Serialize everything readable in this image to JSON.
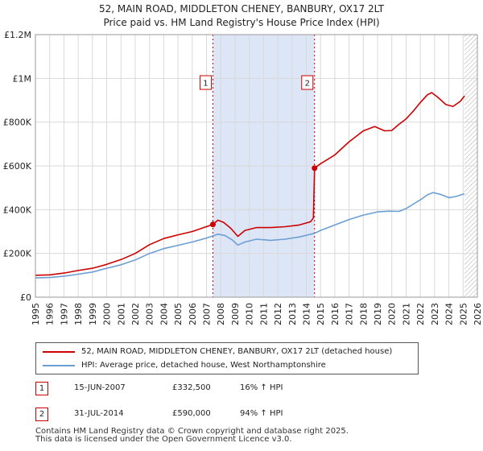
{
  "title_line1": "52, MAIN ROAD, MIDDLETON CHENEY, BANBURY, OX17 2LT",
  "title_line2": "Price paid vs. HM Land Registry's House Price Index (HPI)",
  "colors": {
    "property": "#cc0000",
    "hpi": "#6b9fd4",
    "shade": "#dde6f7",
    "grid": "#d9d9d9",
    "hatch": "#aaaaaa"
  },
  "legend": {
    "property_label": "52, MAIN ROAD, MIDDLETON CHENEY, BANBURY, OX17 2LT (detached house)",
    "hpi_label": "HPI: Average price, detached house, West Northamptonshire"
  },
  "sales": [
    {
      "num": "1",
      "date": "15-JUN-2007",
      "price": "£332,500",
      "hpi_change": "16% ↑ HPI"
    },
    {
      "num": "2",
      "date": "31-JUL-2014",
      "price": "£590,000",
      "hpi_change": "94% ↑ HPI"
    }
  ],
  "footer_line1": "Contains HM Land Registry data © Crown copyright and database right 2025.",
  "footer_line2": "This data is licensed under the Open Government Licence v3.0.",
  "chart_data": {
    "type": "line",
    "xlim": [
      1995,
      2026
    ],
    "ylim": [
      0,
      1200000
    ],
    "x_ticks": [
      1995,
      1996,
      1997,
      1998,
      1999,
      2000,
      2001,
      2002,
      2003,
      2004,
      2005,
      2006,
      2007,
      2008,
      2009,
      2010,
      2011,
      2012,
      2013,
      2014,
      2015,
      2016,
      2017,
      2018,
      2019,
      2020,
      2021,
      2022,
      2023,
      2024,
      2025,
      2026
    ],
    "y_ticks": [
      {
        "value": 0,
        "label": "£0"
      },
      {
        "value": 200000,
        "label": "£200K"
      },
      {
        "value": 400000,
        "label": "£400K"
      },
      {
        "value": 600000,
        "label": "£600K"
      },
      {
        "value": 800000,
        "label": "£800K"
      },
      {
        "value": 1000000,
        "label": "£1M"
      },
      {
        "value": 1200000,
        "label": "£1.2M"
      }
    ],
    "shaded_range": [
      2007.45,
      2014.58
    ],
    "forecast_start": 2025.1,
    "markers": [
      {
        "label": "1",
        "x": 2007.45,
        "y": 332500
      },
      {
        "label": "2",
        "x": 2014.58,
        "y": 590000
      }
    ],
    "series": [
      {
        "name": "52, MAIN ROAD, MIDDLETON CHENEY, BANBURY, OX17 2LT (detached house)",
        "color": "#cc0000",
        "points": [
          [
            1995,
            100000
          ],
          [
            1996,
            102000
          ],
          [
            1997,
            110000
          ],
          [
            1998,
            122000
          ],
          [
            1999,
            132000
          ],
          [
            2000,
            150000
          ],
          [
            2001,
            172000
          ],
          [
            2002,
            200000
          ],
          [
            2003,
            240000
          ],
          [
            2004,
            268000
          ],
          [
            2005,
            285000
          ],
          [
            2006,
            300000
          ],
          [
            2006.8,
            318000
          ],
          [
            2007.45,
            332500
          ],
          [
            2007.8,
            352000
          ],
          [
            2008.2,
            342000
          ],
          [
            2008.7,
            315000
          ],
          [
            2009.2,
            278000
          ],
          [
            2009.7,
            305000
          ],
          [
            2010.5,
            318000
          ],
          [
            2011.5,
            318000
          ],
          [
            2012.5,
            322000
          ],
          [
            2013.5,
            330000
          ],
          [
            2014.3,
            345000
          ],
          [
            2014.5,
            362000
          ],
          [
            2014.58,
            590000
          ],
          [
            2015,
            610000
          ],
          [
            2016,
            650000
          ],
          [
            2017,
            710000
          ],
          [
            2018,
            760000
          ],
          [
            2018.8,
            780000
          ],
          [
            2019.5,
            760000
          ],
          [
            2020,
            762000
          ],
          [
            2020.5,
            790000
          ],
          [
            2021,
            815000
          ],
          [
            2021.5,
            850000
          ],
          [
            2022,
            890000
          ],
          [
            2022.5,
            925000
          ],
          [
            2022.8,
            935000
          ],
          [
            2023.2,
            915000
          ],
          [
            2023.8,
            880000
          ],
          [
            2024.3,
            872000
          ],
          [
            2024.8,
            895000
          ],
          [
            2025.1,
            920000
          ]
        ]
      },
      {
        "name": "HPI: Average price, detached house, West Northamptonshire",
        "color": "#6b9fd4",
        "points": [
          [
            1995,
            88000
          ],
          [
            1996,
            90000
          ],
          [
            1997,
            96000
          ],
          [
            1998,
            105000
          ],
          [
            1999,
            115000
          ],
          [
            2000,
            132000
          ],
          [
            2001,
            148000
          ],
          [
            2002,
            170000
          ],
          [
            2003,
            200000
          ],
          [
            2004,
            222000
          ],
          [
            2005,
            237000
          ],
          [
            2006,
            252000
          ],
          [
            2007,
            270000
          ],
          [
            2007.8,
            288000
          ],
          [
            2008.3,
            282000
          ],
          [
            2008.8,
            262000
          ],
          [
            2009.2,
            238000
          ],
          [
            2009.7,
            252000
          ],
          [
            2010.5,
            265000
          ],
          [
            2011.5,
            260000
          ],
          [
            2012.5,
            265000
          ],
          [
            2013.5,
            275000
          ],
          [
            2014.58,
            292000
          ],
          [
            2015,
            305000
          ],
          [
            2016,
            330000
          ],
          [
            2017,
            355000
          ],
          [
            2018,
            375000
          ],
          [
            2019,
            390000
          ],
          [
            2019.8,
            393000
          ],
          [
            2020.5,
            392000
          ],
          [
            2021,
            405000
          ],
          [
            2021.5,
            425000
          ],
          [
            2022,
            445000
          ],
          [
            2022.5,
            468000
          ],
          [
            2022.9,
            478000
          ],
          [
            2023.4,
            470000
          ],
          [
            2024,
            455000
          ],
          [
            2024.5,
            460000
          ],
          [
            2025.1,
            473000
          ]
        ]
      }
    ]
  }
}
